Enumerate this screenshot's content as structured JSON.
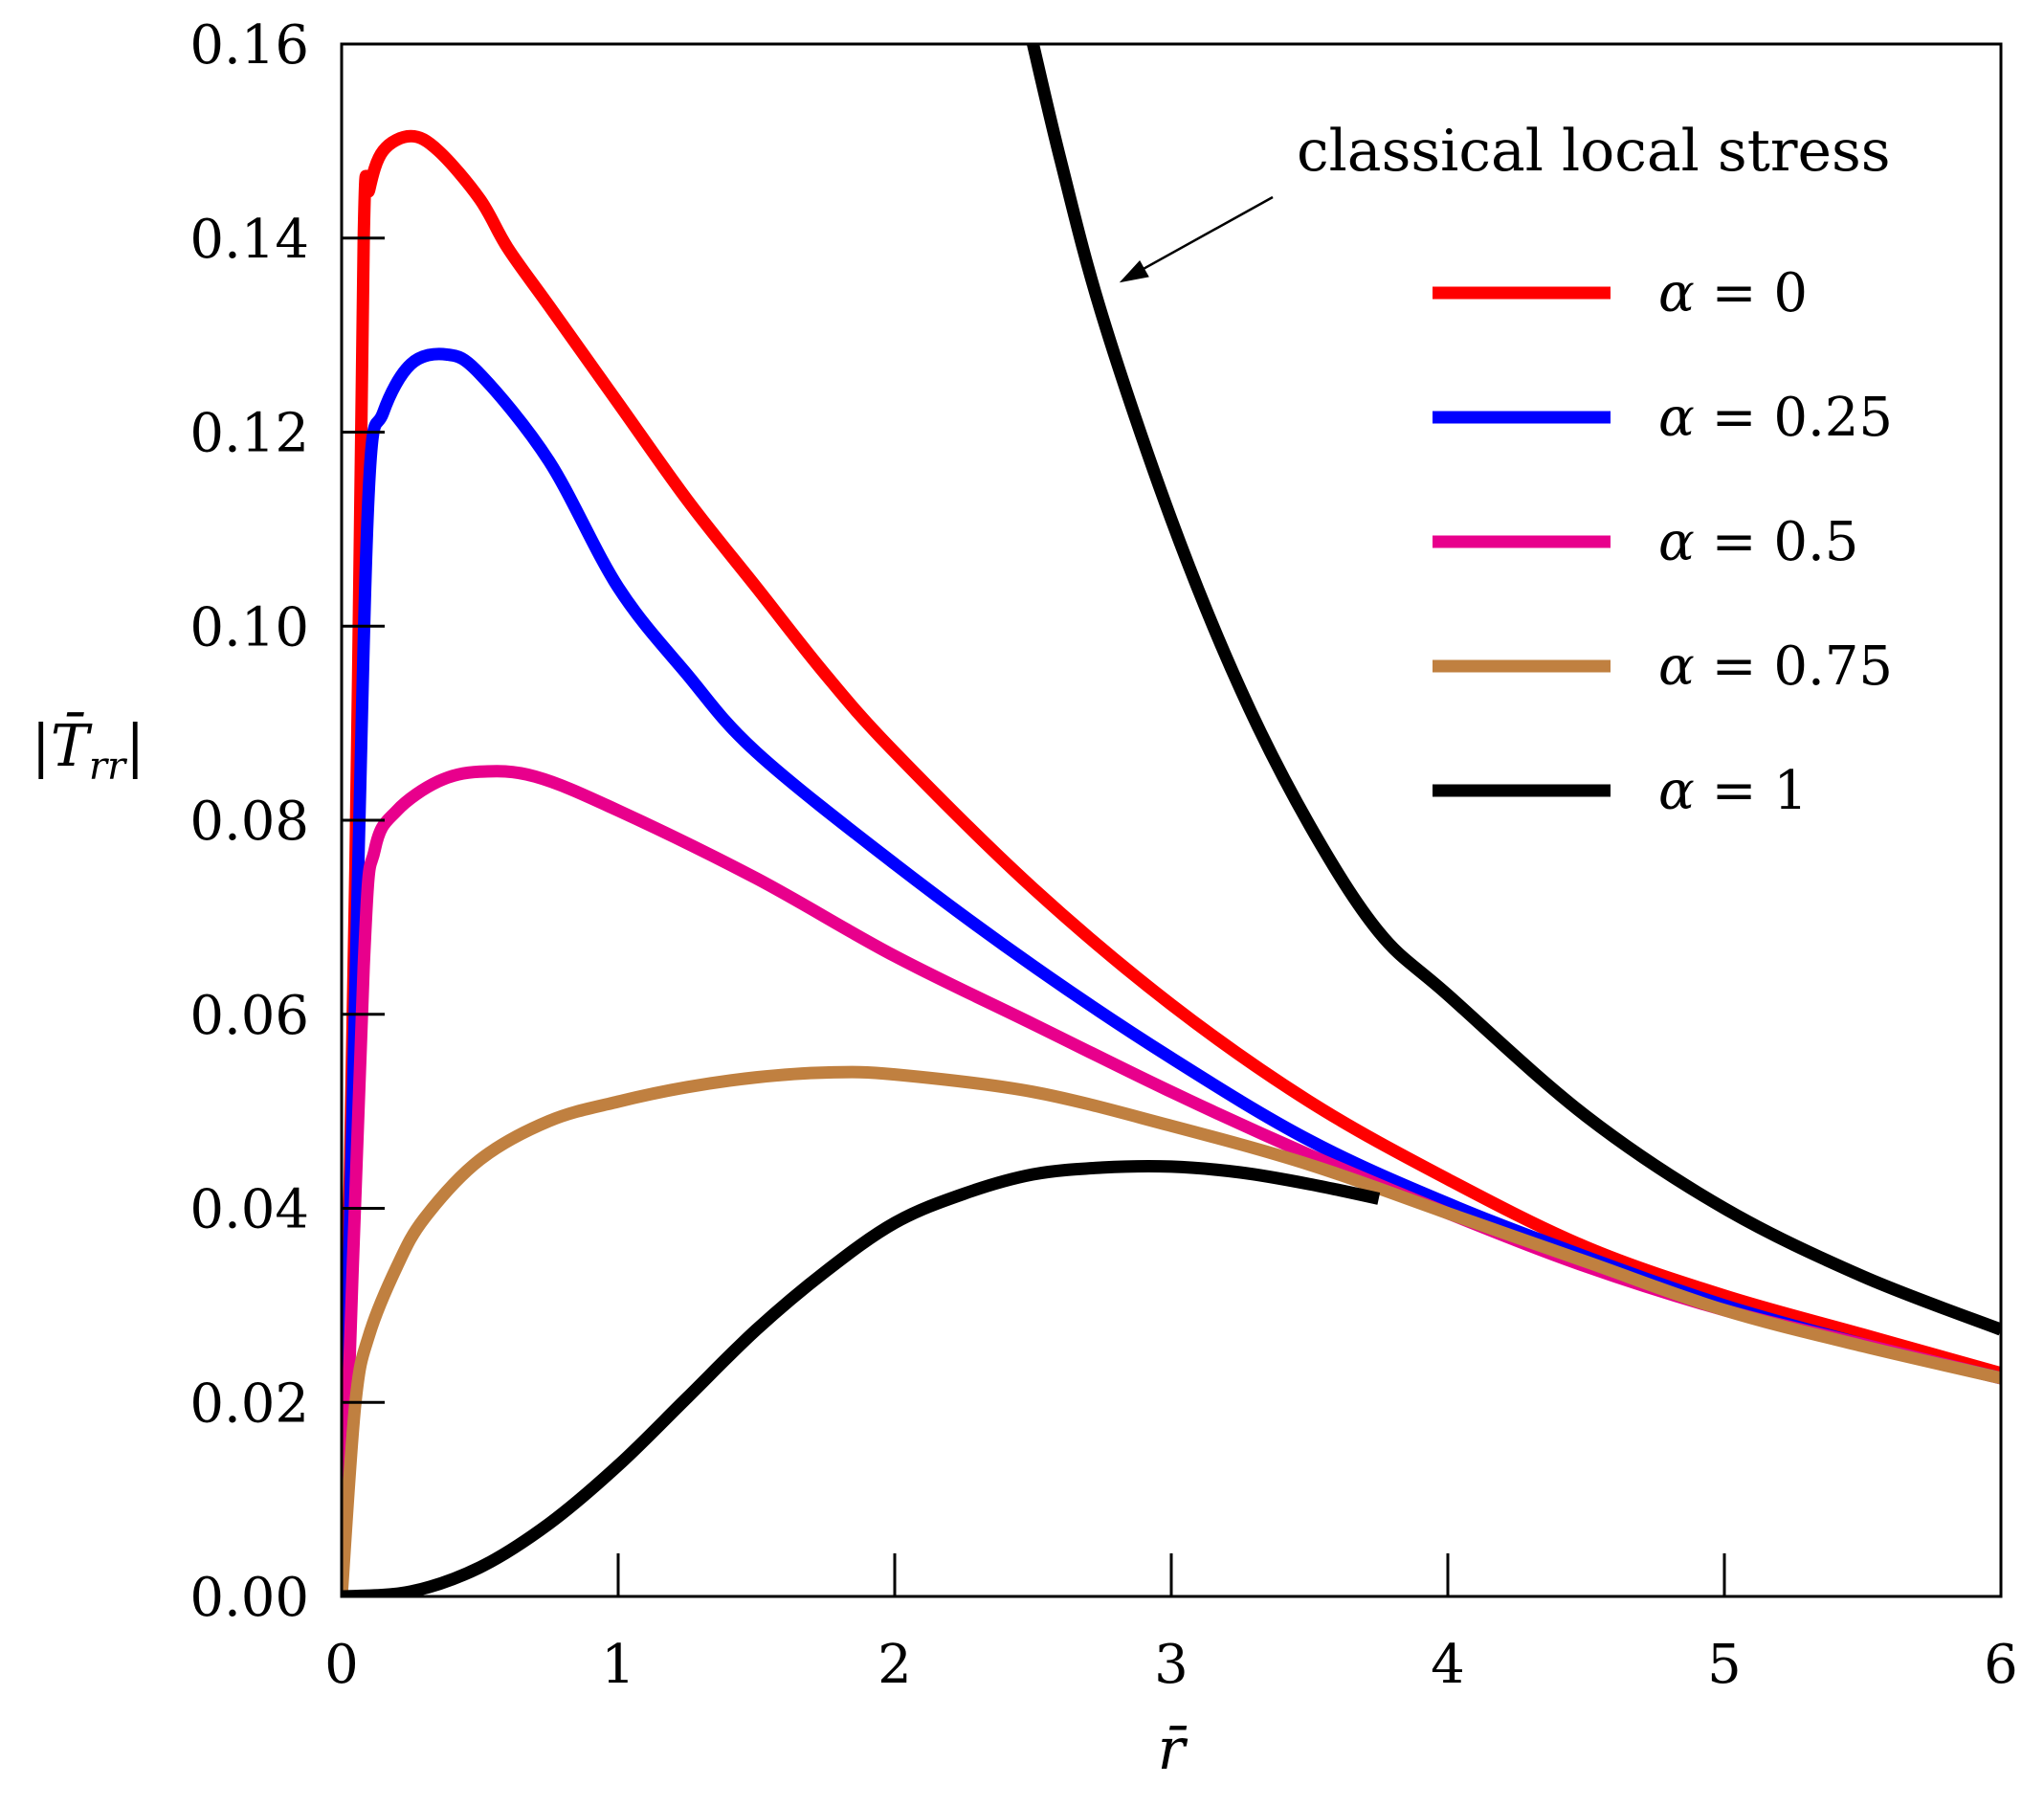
{
  "chart_data": {
    "type": "line",
    "xlabel": "r̄",
    "ylabel": "|T̄rr|",
    "ylabel_parts": {
      "prefix": "|",
      "main": "T̄",
      "sub": "rr",
      "suffix": "|"
    },
    "xlim": [
      0,
      6
    ],
    "ylim": [
      0,
      0.16
    ],
    "xticks": [
      0,
      1,
      2,
      3,
      4,
      5,
      6
    ],
    "xtick_labels": [
      "0",
      "1",
      "2",
      "3",
      "4",
      "5",
      "6"
    ],
    "yticks": [
      0.0,
      0.02,
      0.04,
      0.06,
      0.08,
      0.1,
      0.12,
      0.14,
      0.16
    ],
    "ytick_labels": [
      "0.00",
      "0.02",
      "0.04",
      "0.06",
      "0.08",
      "0.10",
      "0.12",
      "0.14",
      "0.16"
    ],
    "grid": false,
    "legend_position": "top-right",
    "annotation": {
      "text": "classical local stress",
      "target_x": 2.75,
      "target_y": 0.136
    },
    "series": [
      {
        "name": "α = 0",
        "greek": "α",
        "equation": " = 0",
        "color": "#ff0000",
        "x": [
          0,
          0.05,
          0.08,
          0.1,
          0.15,
          0.25,
          0.35,
          0.5,
          0.6,
          0.75,
          1.0,
          1.25,
          1.5,
          1.75,
          2.0,
          2.5,
          3.0,
          3.5,
          4.0,
          4.5,
          5.0,
          5.5,
          6.0
        ],
        "y": [
          0,
          0.075,
          0.14,
          0.145,
          0.149,
          0.1505,
          0.149,
          0.144,
          0.139,
          0.133,
          0.123,
          0.113,
          0.104,
          0.095,
          0.087,
          0.073,
          0.061,
          0.051,
          0.043,
          0.036,
          0.031,
          0.027,
          0.023
        ]
      },
      {
        "name": "α = 0.25",
        "greek": "α",
        "equation": " = 0.25",
        "color": "#0000ff",
        "x": [
          0,
          0.06,
          0.1,
          0.15,
          0.25,
          0.38,
          0.5,
          0.75,
          1.0,
          1.25,
          1.5,
          2.0,
          2.5,
          3.0,
          3.5,
          4.0,
          4.5,
          5.0,
          5.5,
          6.0
        ],
        "y": [
          0,
          0.075,
          0.115,
          0.122,
          0.127,
          0.128,
          0.126,
          0.117,
          0.104,
          0.095,
          0.087,
          0.0755,
          0.065,
          0.0555,
          0.047,
          0.0405,
          0.035,
          0.03,
          0.026,
          0.0225
        ]
      },
      {
        "name": "α = 0.5",
        "greek": "α",
        "equation": " = 0.5",
        "color": "#e8008c",
        "x": [
          0,
          0.08,
          0.12,
          0.2,
          0.35,
          0.5,
          0.7,
          1.0,
          1.5,
          2.0,
          2.5,
          3.0,
          3.5,
          4.0,
          4.5,
          5.0,
          5.5,
          6.0
        ],
        "y": [
          0,
          0.065,
          0.077,
          0.081,
          0.084,
          0.085,
          0.0845,
          0.081,
          0.074,
          0.066,
          0.059,
          0.052,
          0.0455,
          0.0395,
          0.034,
          0.0295,
          0.026,
          0.0225
        ]
      },
      {
        "name": "α = 0.75",
        "greek": "α",
        "equation": " = 0.75",
        "color": "#c08040",
        "x": [
          0,
          0.05,
          0.1,
          0.2,
          0.3,
          0.5,
          0.75,
          1.0,
          1.25,
          1.5,
          1.75,
          2.0,
          2.5,
          3.0,
          3.5,
          4.0,
          4.5,
          5.0,
          5.5,
          6.0
        ],
        "y": [
          0,
          0.02,
          0.027,
          0.034,
          0.039,
          0.045,
          0.049,
          0.051,
          0.0525,
          0.0535,
          0.054,
          0.0538,
          0.052,
          0.0485,
          0.0445,
          0.0395,
          0.0345,
          0.0295,
          0.0258,
          0.0225
        ]
      },
      {
        "name": "α = 1",
        "greek": "α",
        "equation": " = 1",
        "color": "#000000",
        "x": [
          0,
          0.25,
          0.5,
          0.75,
          1.0,
          1.25,
          1.5,
          1.75,
          2.0,
          2.25,
          2.5,
          2.75,
          3.0,
          3.25,
          3.5,
          3.75
        ],
        "y": [
          0,
          0.0005,
          0.003,
          0.0075,
          0.0135,
          0.0205,
          0.0275,
          0.0335,
          0.0385,
          0.0415,
          0.0435,
          0.0442,
          0.0443,
          0.0437,
          0.0425,
          0.041
        ]
      },
      {
        "name": "classical local stress",
        "color": "#000000",
        "x": [
          2.5,
          2.6,
          2.75,
          3.0,
          3.25,
          3.5,
          3.75,
          4.0,
          4.5,
          5.0,
          5.5,
          6.0
        ],
        "y": [
          0.16,
          0.148,
          0.132,
          0.111,
          0.0935,
          0.0795,
          0.0685,
          0.062,
          0.0495,
          0.04,
          0.033,
          0.0275
        ]
      }
    ]
  }
}
